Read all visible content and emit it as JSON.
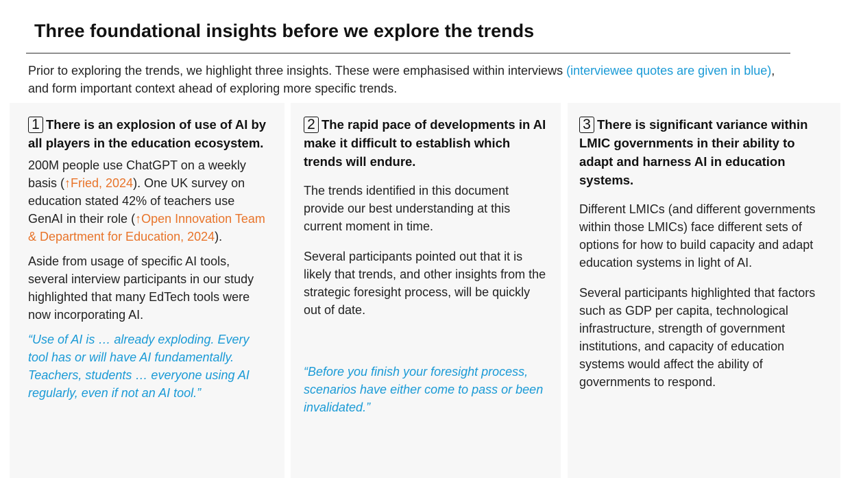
{
  "header": {
    "title": "Three foundational insights before we explore the trends"
  },
  "intro": [
    "Prior to exploring the trends, we highlight three insights. These were emphasised within interviews ",
    "(interviewee quotes are given in blue)",
    ", and form important context ahead of exploring more specific trends."
  ],
  "columns": [
    {
      "number": "1",
      "heading": "There is an explosion of use of AI by all players in the education ecosystem.",
      "paragraphs": [
        [
          "200M people use ChatGPT on a weekly basis (",
          "↑Fried, 2024",
          "). One UK survey on education stated 42% of teachers use GenAI in their role (",
          "↑Open Innovation Team & Department for Education, 2024",
          ")."
        ],
        [
          "Aside from usage of specific AI tools, several interview participants in our study highlighted that many EdTech tools were now incorporating AI."
        ]
      ],
      "quote": "“Use of AI is … already exploding. Every tool has or will have AI fundamentally. Teachers, students … everyone using AI regularly, even if not an AI tool.”"
    },
    {
      "number": "2",
      "heading": "The rapid pace of developments in AI make it difficult to establish which trends will endure.",
      "paragraphs": [
        [
          "The trends identified in this document provide our best understanding at this current moment in time."
        ],
        [
          "Several participants pointed out that it is likely that trends, and other insights from the strategic foresight process, will be quickly out of date."
        ]
      ],
      "quote": "“Before you finish your foresight process, scenarios have either come to pass or been invalidated.”"
    },
    {
      "number": "3",
      "heading": "There is significant variance within LMIC governments in their ability to adapt and harness AI in education systems.",
      "paragraphs": [
        [
          "Different LMICs (and different governments within those LMICs) face different sets of options for how to build capacity and adapt education systems in light of AI."
        ],
        [
          "Several participants highlighted that factors such as GDP per capita, technological infrastructure, strength of government institutions, and capacity of education systems would affect the ability of governments to respond."
        ]
      ]
    }
  ]
}
